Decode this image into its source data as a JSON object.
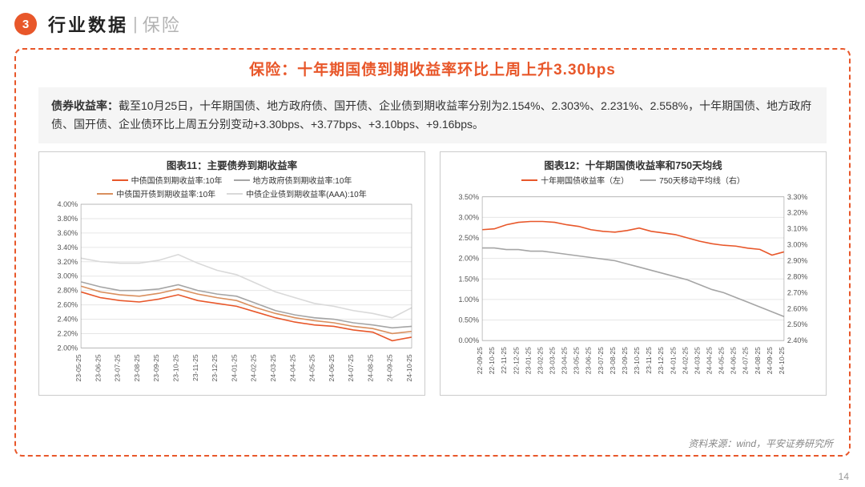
{
  "header": {
    "badge": "3",
    "title": "行业数据",
    "sub": "保险"
  },
  "panel_title": "保险：十年期国债到期收益率环比上周上升3.30bps",
  "description": "<b>债券收益率：</b>截至10月25日，十年期国债、地方政府债、国开债、企业债到期收益率分别为2.154%、2.303%、2.231%、2.558%，十年期国债、地方政府债、国开债、企业债环比上周五分别变动+3.30bps、+3.77bps、+3.10bps、+9.16bps。",
  "source": "资料来源：wind，平安证券研究所",
  "pagenum": "14",
  "chart1": {
    "title": "图表11：主要债券到期收益率",
    "legend": [
      {
        "label": "中债国债到期收益率:10年",
        "color": "#e8572a"
      },
      {
        "label": "地方政府债到期收益率:10年",
        "color": "#a5a5a5"
      },
      {
        "label": "中债国开债到期收益率:10年",
        "color": "#d98f5e"
      },
      {
        "label": "中债企业债到期收益率(AAA):10年",
        "color": "#d9d9d9"
      }
    ],
    "ylim": [
      2.0,
      4.0
    ],
    "ytick_step": 0.2,
    "yformat_pct": true,
    "xlabels": [
      "23-05-25",
      "23-06-25",
      "23-07-25",
      "23-08-25",
      "23-09-25",
      "23-10-25",
      "23-11-25",
      "23-12-25",
      "24-01-25",
      "24-02-25",
      "24-03-25",
      "24-04-25",
      "24-05-25",
      "24-06-25",
      "24-07-25",
      "24-08-25",
      "24-09-25",
      "24-10-25"
    ],
    "series": [
      {
        "color": "#d9d9d9",
        "width": 1.6,
        "values": [
          3.25,
          3.2,
          3.18,
          3.18,
          3.22,
          3.3,
          3.18,
          3.08,
          3.02,
          2.9,
          2.78,
          2.7,
          2.62,
          2.58,
          2.52,
          2.48,
          2.42,
          2.56
        ]
      },
      {
        "color": "#a5a5a5",
        "width": 1.6,
        "values": [
          2.92,
          2.85,
          2.8,
          2.8,
          2.82,
          2.88,
          2.8,
          2.75,
          2.72,
          2.62,
          2.52,
          2.46,
          2.42,
          2.4,
          2.35,
          2.32,
          2.28,
          2.3
        ]
      },
      {
        "color": "#d98f5e",
        "width": 1.6,
        "values": [
          2.86,
          2.78,
          2.74,
          2.72,
          2.76,
          2.82,
          2.75,
          2.7,
          2.66,
          2.56,
          2.48,
          2.42,
          2.38,
          2.35,
          2.3,
          2.27,
          2.2,
          2.23
        ]
      },
      {
        "color": "#e8572a",
        "width": 1.8,
        "values": [
          2.78,
          2.7,
          2.66,
          2.64,
          2.68,
          2.74,
          2.66,
          2.62,
          2.58,
          2.5,
          2.42,
          2.36,
          2.32,
          2.3,
          2.25,
          2.22,
          2.1,
          2.15
        ]
      }
    ],
    "grid_color": "#e6e6e6",
    "bg": "#ffffff"
  },
  "chart2": {
    "title": "图表12：十年期国债收益率和750天均线",
    "legend": [
      {
        "label": "十年期国债收益率（左）",
        "color": "#e8572a"
      },
      {
        "label": "750天移动平均线（右）",
        "color": "#a5a5a5"
      }
    ],
    "ylim_left": [
      0.0,
      3.5
    ],
    "ytick_left_step": 0.5,
    "ylim_right": [
      2.4,
      3.3
    ],
    "ytick_right_step": 0.1,
    "yformat_pct": true,
    "xlabels": [
      "22-09-25",
      "22-10-25",
      "22-11-25",
      "22-12-25",
      "23-01-25",
      "23-02-25",
      "23-03-25",
      "23-04-25",
      "23-05-25",
      "23-06-25",
      "23-07-25",
      "23-08-25",
      "23-09-25",
      "23-10-25",
      "23-11-25",
      "23-12-25",
      "24-01-25",
      "24-02-25",
      "24-03-25",
      "24-04-25",
      "24-05-25",
      "24-06-25",
      "24-07-25",
      "24-08-25",
      "24-09-25",
      "24-10-25"
    ],
    "series_left": {
      "color": "#e8572a",
      "width": 1.8,
      "values": [
        2.7,
        2.72,
        2.82,
        2.88,
        2.9,
        2.9,
        2.88,
        2.82,
        2.78,
        2.7,
        2.66,
        2.64,
        2.68,
        2.74,
        2.66,
        2.62,
        2.58,
        2.5,
        2.42,
        2.36,
        2.32,
        2.3,
        2.25,
        2.22,
        2.08,
        2.16
      ]
    },
    "series_right": {
      "color": "#a5a5a5",
      "width": 1.6,
      "values": [
        2.98,
        2.98,
        2.97,
        2.97,
        2.96,
        2.96,
        2.95,
        2.94,
        2.93,
        2.92,
        2.91,
        2.9,
        2.88,
        2.86,
        2.84,
        2.82,
        2.8,
        2.78,
        2.75,
        2.72,
        2.7,
        2.67,
        2.64,
        2.61,
        2.58,
        2.55
      ]
    },
    "grid_color": "#e6e6e6",
    "bg": "#ffffff"
  }
}
